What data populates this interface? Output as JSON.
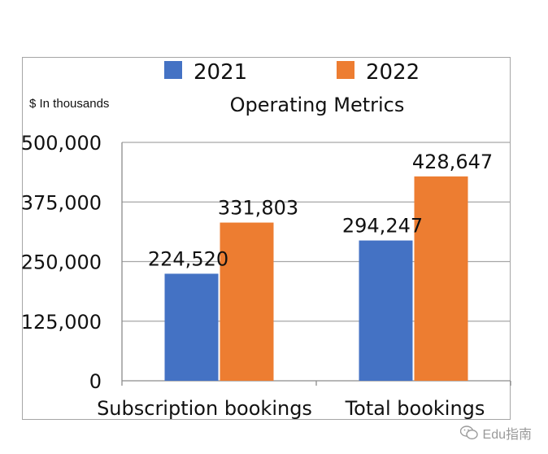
{
  "chart_data": {
    "type": "bar",
    "title": "Operating Metrics",
    "unit_label": "$ In thousands",
    "categories": [
      "Subscription bookings",
      "Total bookings"
    ],
    "series": [
      {
        "name": "2021",
        "color": "#4472c4",
        "values": [
          224520,
          294247
        ],
        "labels": [
          "224,520",
          "294,247"
        ]
      },
      {
        "name": "2022",
        "color": "#ed7d31",
        "values": [
          331803,
          428647
        ],
        "labels": [
          "331,803",
          "428,647"
        ]
      }
    ],
    "yticks": [
      0,
      125000,
      250000,
      375000,
      500000
    ],
    "ytick_labels": [
      "0",
      "125,000",
      "250,000",
      "375,000",
      "500,000"
    ],
    "ylim": [
      0,
      500000
    ],
    "grid": true,
    "legend": "top-center"
  },
  "watermark": {
    "text": "Edu指南",
    "icon": "wechat-icon"
  }
}
